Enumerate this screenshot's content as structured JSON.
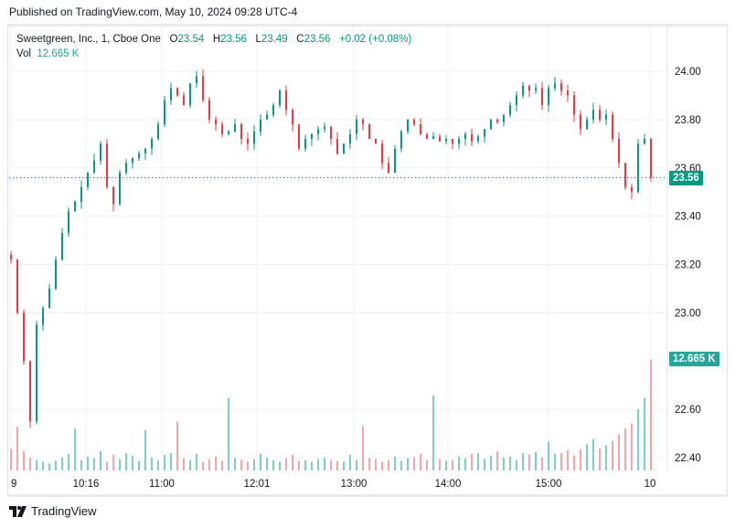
{
  "header": {
    "published": "Published on TradingView.com, May 10, 2024 09:28 UTC-4"
  },
  "legend": {
    "symbol": "Sweetgreen, Inc., 1, Cboe One",
    "open_label": "O",
    "open": "23.54",
    "high_label": "H",
    "high": "23.56",
    "low_label": "L",
    "low": "23.49",
    "close_label": "C",
    "close": "23.56",
    "change": "+0.02 (+0.08%)",
    "vol_label": "Vol",
    "vol": "12.665 K"
  },
  "badges": {
    "last_price": "23.56",
    "last_volume": "12.665 K"
  },
  "colors": {
    "up": "#089981",
    "down": "#f23645",
    "up_vol": "#7fcfc3",
    "down_vol": "#f7a5a9",
    "grid": "#f0f1f4"
  },
  "footer": {
    "brand": "TradingView",
    "logo_icon": "tradingview-logo-icon"
  },
  "chart_data": {
    "type": "candlestick",
    "interval": "1 minute",
    "x_tick_labels": [
      "9",
      "10:16",
      "11:00",
      "12:01",
      "13:00",
      "14:00",
      "15:00",
      "10"
    ],
    "y_tick_labels": [
      "24.00",
      "23.80",
      "23.60",
      "23.40",
      "23.20",
      "23.00",
      "22.60",
      "22.40"
    ],
    "ylim": [
      22.34,
      24.08
    ],
    "grid": true,
    "last_price": 23.56,
    "closes": [
      23.22,
      23.0,
      22.8,
      22.55,
      22.95,
      23.02,
      23.1,
      23.22,
      23.33,
      23.42,
      23.46,
      23.52,
      23.58,
      23.63,
      23.7,
      23.52,
      23.45,
      23.58,
      23.62,
      23.64,
      23.66,
      23.68,
      23.72,
      23.78,
      23.88,
      23.93,
      23.9,
      23.86,
      23.95,
      23.98,
      23.88,
      23.8,
      23.78,
      23.74,
      23.75,
      23.78,
      23.72,
      23.7,
      23.75,
      23.8,
      23.82,
      23.86,
      23.92,
      23.84,
      23.78,
      23.68,
      23.72,
      23.74,
      23.76,
      23.77,
      23.72,
      23.66,
      23.7,
      23.74,
      23.8,
      23.78,
      23.72,
      23.7,
      23.62,
      23.58,
      23.68,
      23.75,
      23.8,
      23.78,
      23.74,
      23.72,
      23.73,
      23.71,
      23.72,
      23.7,
      23.72,
      23.74,
      23.71,
      23.73,
      23.76,
      23.8,
      23.79,
      23.82,
      23.86,
      23.9,
      23.94,
      23.92,
      23.93,
      23.86,
      23.93,
      23.95,
      23.92,
      23.9,
      23.82,
      23.76,
      23.8,
      23.84,
      23.8,
      23.82,
      23.72,
      23.62,
      23.52,
      23.5,
      23.7,
      23.72,
      23.56
    ],
    "volumes_k": [
      2.5,
      5.0,
      2.2,
      1.5,
      1.2,
      1.0,
      0.8,
      1.1,
      1.5,
      1.9,
      4.8,
      1.2,
      1.6,
      1.4,
      2.2,
      1.0,
      1.8,
      1.3,
      2.0,
      1.7,
      1.1,
      4.6,
      1.5,
      1.2,
      1.8,
      2.0,
      5.6,
      1.4,
      1.2,
      1.9,
      1.0,
      1.3,
      1.6,
      1.1,
      8.3,
      1.4,
      1.2,
      1.0,
      1.3,
      1.9,
      1.5,
      1.2,
      1.0,
      1.4,
      1.8,
      1.1,
      1.2,
      1.0,
      1.3,
      1.5,
      1.2,
      1.1,
      1.0,
      1.8,
      1.2,
      5.1,
      1.4,
      1.3,
      1.0,
      1.2,
      1.6,
      1.1,
      1.4,
      1.5,
      1.9,
      1.2,
      8.6,
      1.3,
      1.1,
      1.2,
      1.6,
      1.4,
      1.9,
      2.0,
      1.3,
      1.7,
      2.2,
      1.5,
      1.6,
      1.2,
      2.0,
      1.8,
      2.1,
      1.5,
      3.3,
      1.9,
      2.0,
      2.3,
      1.7,
      2.4,
      3.0,
      3.6,
      2.5,
      2.9,
      3.4,
      4.1,
      4.8,
      5.4,
      7.0,
      8.3,
      12.665
    ]
  }
}
